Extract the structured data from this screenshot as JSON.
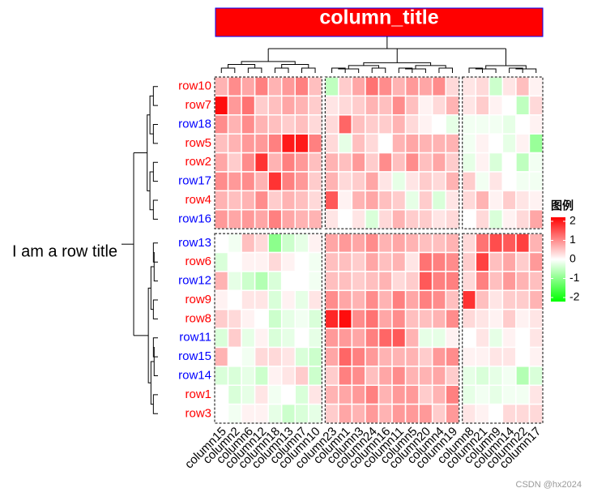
{
  "chart_data": {
    "type": "heatmap",
    "title": "column_title",
    "row_title": "I am a row title",
    "legend_title": "图例",
    "row_groups": [
      [
        "row10",
        "row7",
        "row18",
        "row5",
        "row2",
        "row17",
        "row4",
        "row16"
      ],
      [
        "row13",
        "row6",
        "row12",
        "row9",
        "row8",
        "row11",
        "row15",
        "row14",
        "row1",
        "row3"
      ]
    ],
    "row_label_colors": [
      [
        "#ff0000",
        "#ff0000",
        "#0000ff",
        "#ff0000",
        "#ff0000",
        "#0000ff",
        "#ff0000",
        "#0000ff"
      ],
      [
        "#0000ff",
        "#ff0000",
        "#0000ff",
        "#ff0000",
        "#ff0000",
        "#0000ff",
        "#0000ff",
        "#0000ff",
        "#ff0000",
        "#ff0000"
      ]
    ],
    "column_groups": [
      [
        "column15",
        "column2",
        "column6",
        "column12",
        "column18",
        "column13",
        "column7",
        "column10"
      ],
      [
        "column23",
        "column1",
        "column3",
        "column24",
        "column16",
        "column11",
        "column5",
        "column20",
        "column4",
        "column19"
      ],
      [
        "column8",
        "column21",
        "column9",
        "column14",
        "column22",
        "column17"
      ]
    ],
    "values": [
      [
        0.6,
        0.9,
        0.7,
        1.0,
        0.6,
        0.8,
        1.0,
        0.5,
        -0.5,
        0.4,
        0.7,
        1.1,
        0.9,
        0.6,
        0.8,
        0.7,
        0.9,
        0.3,
        0.2,
        0.3,
        -0.4,
        0.2,
        0.5,
        0.1
      ],
      [
        1.9,
        0.8,
        1.1,
        0.4,
        0.5,
        0.7,
        0.6,
        0.4,
        0.2,
        0.3,
        0.4,
        0.6,
        0.5,
        0.9,
        0.5,
        0.1,
        0.3,
        0.6,
        0.2,
        0.4,
        0.1,
        0.0,
        -0.5,
        0.3
      ],
      [
        0.9,
        0.6,
        0.9,
        0.6,
        0.5,
        0.4,
        0.5,
        0.3,
        0.3,
        1.2,
        0.5,
        0.4,
        0.4,
        0.6,
        0.3,
        0.1,
        0.0,
        -0.2,
        -0.1,
        -0.1,
        -0.1,
        -0.2,
        0.0,
        0.1
      ],
      [
        0.5,
        0.6,
        0.8,
        0.8,
        1.0,
        1.8,
        1.8,
        1.0,
        0.3,
        -0.2,
        0.5,
        0.3,
        0.0,
        0.6,
        0.7,
        0.6,
        0.6,
        0.6,
        -0.1,
        0.1,
        0.0,
        -0.2,
        0.1,
        -0.8
      ],
      [
        0.7,
        0.4,
        0.9,
        1.6,
        0.6,
        1.0,
        0.8,
        0.5,
        0.6,
        0.5,
        0.8,
        0.4,
        0.9,
        0.5,
        0.9,
        0.5,
        0.7,
        0.4,
        -0.2,
        0.1,
        -0.3,
        0.0,
        -0.5,
        -0.1
      ],
      [
        0.9,
        0.8,
        0.9,
        0.6,
        1.6,
        1.0,
        0.8,
        0.4,
        0.6,
        0.3,
        0.4,
        0.7,
        0.2,
        -0.2,
        0.2,
        0.4,
        0.3,
        0.6,
        0.4,
        -0.1,
        0.2,
        0.0,
        -0.1,
        -0.1
      ],
      [
        0.6,
        0.5,
        0.6,
        0.9,
        0.4,
        0.6,
        0.5,
        0.3,
        1.3,
        0.1,
        0.6,
        0.7,
        0.5,
        0.4,
        -0.2,
        0.4,
        -0.3,
        0.2,
        0.3,
        0.6,
        0.1,
        0.4,
        0.2,
        0.1
      ],
      [
        0.8,
        0.7,
        0.8,
        0.7,
        1.0,
        0.7,
        0.6,
        0.6,
        0.2,
        0.0,
        0.2,
        -0.3,
        0.3,
        0.6,
        0.4,
        0.4,
        0.2,
        0.3,
        0.0,
        0.3,
        -0.3,
        0.1,
        0.3,
        0.7
      ],
      [
        0.0,
        -0.1,
        0.5,
        0.3,
        -0.9,
        -0.4,
        -0.2,
        0.1,
        0.7,
        0.8,
        0.7,
        0.9,
        0.6,
        0.7,
        0.6,
        0.5,
        0.5,
        0.6,
        0.3,
        1.1,
        1.4,
        1.3,
        1.5,
        0.6
      ],
      [
        -0.3,
        0.0,
        0.1,
        0.1,
        0.3,
        0.1,
        0.0,
        -0.1,
        0.5,
        0.5,
        0.4,
        0.7,
        0.5,
        0.6,
        0.2,
        1.1,
        1.0,
        0.9,
        0.4,
        1.5,
        0.5,
        0.7,
        0.4,
        0.8
      ],
      [
        0.6,
        -0.2,
        -0.4,
        -0.6,
        -0.3,
        0.0,
        0.0,
        -0.1,
        0.5,
        0.5,
        0.4,
        0.5,
        0.6,
        0.3,
        0.4,
        1.3,
        1.0,
        1.0,
        0.3,
        1.0,
        0.5,
        0.8,
        0.6,
        0.5
      ],
      [
        0.1,
        0.0,
        0.2,
        0.2,
        -0.3,
        0.1,
        -0.2,
        0.2,
        0.9,
        0.7,
        0.6,
        0.9,
        0.6,
        1.0,
        0.7,
        1.0,
        0.9,
        0.5,
        1.6,
        0.5,
        0.2,
        0.4,
        0.4,
        0.6
      ],
      [
        0.4,
        0.3,
        0.1,
        0.0,
        -0.4,
        -0.2,
        -0.1,
        -0.3,
        1.7,
        1.9,
        0.9,
        1.1,
        0.7,
        0.9,
        0.5,
        0.5,
        0.6,
        0.9,
        0.3,
        0.2,
        0.1,
        0.4,
        0.1,
        0.2
      ],
      [
        -0.3,
        0.4,
        -0.2,
        0.1,
        -0.3,
        -0.2,
        0.0,
        -0.2,
        0.8,
        0.8,
        0.7,
        1.0,
        1.2,
        1.3,
        0.6,
        -0.2,
        -0.2,
        0.1,
        0.0,
        0.2,
        -0.2,
        0.1,
        0.0,
        0.2
      ],
      [
        0.6,
        0.0,
        -0.1,
        0.3,
        0.3,
        0.2,
        -0.3,
        -0.4,
        0.7,
        1.2,
        1.0,
        0.8,
        0.6,
        0.6,
        0.6,
        0.4,
        0.8,
        0.9,
        0.1,
        0.1,
        0.2,
        0.2,
        0.0,
        0.1
      ],
      [
        -0.3,
        -0.3,
        -0.2,
        -0.4,
        0.1,
        0.2,
        0.4,
        -0.4,
        0.4,
        1.0,
        0.9,
        0.5,
        0.7,
        0.9,
        0.6,
        0.6,
        0.7,
        0.4,
        -0.2,
        -0.3,
        -0.2,
        -0.1,
        -0.6,
        -0.3
      ],
      [
        0.0,
        -0.3,
        -0.2,
        0.2,
        -0.1,
        0.0,
        -0.3,
        0.2,
        0.6,
        0.7,
        0.8,
        1.0,
        0.6,
        0.8,
        0.8,
        0.4,
        0.6,
        1.0,
        -0.2,
        -0.1,
        -0.2,
        -0.1,
        -0.1,
        0.2
      ],
      [
        0.0,
        -0.1,
        0.1,
        0.1,
        -0.2,
        -0.4,
        -0.3,
        -0.2,
        0.4,
        0.7,
        0.6,
        0.8,
        0.6,
        0.8,
        0.8,
        0.8,
        0.4,
        0.8,
        0.2,
        0.1,
        0.0,
        0.3,
        0.3,
        0.3
      ]
    ],
    "color_scale": {
      "low": "#00ff00",
      "mid": "#ffffff",
      "high": "#ff0000"
    },
    "clim": [
      -2,
      2
    ],
    "legend_ticks": [
      2,
      1,
      0,
      -1,
      -2
    ],
    "title_fill": "#ff0000",
    "title_border": "#0000ff",
    "watermark": "CSDN @hx2024"
  }
}
